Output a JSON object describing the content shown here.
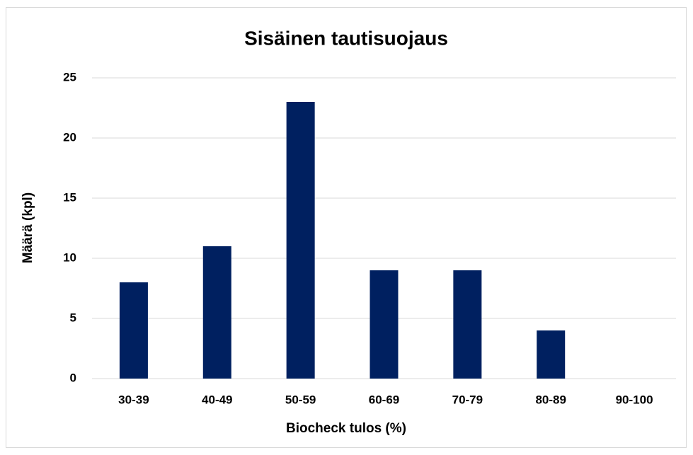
{
  "chart_data": {
    "type": "bar",
    "title": "Sisäinen tautisuojaus",
    "x_label": "Biocheck tulos (%)",
    "y_label": "Määrä (kpl)",
    "categories": [
      "30-39",
      "40-49",
      "50-59",
      "60-69",
      "70-79",
      "80-89",
      "90-100"
    ],
    "values": [
      8,
      11,
      23,
      9,
      9,
      4,
      0
    ],
    "color": "#002060",
    "ylim": [
      0,
      25
    ],
    "yticks": [
      0,
      5,
      10,
      15,
      20,
      25
    ],
    "grid": true
  }
}
